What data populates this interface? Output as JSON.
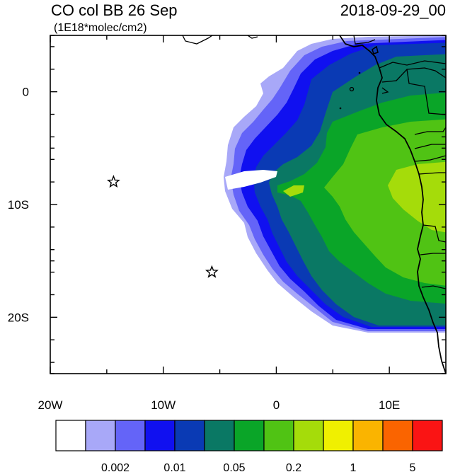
{
  "title": "CO col BB 26 Sep",
  "units": "(1E18*molec/cm2)",
  "datetime": "2018-09-29_00",
  "map": {
    "lon_range": [
      -20,
      15
    ],
    "lat_range": [
      -25,
      5
    ],
    "x_ticks": [
      {
        "value": -20,
        "label": "20W"
      },
      {
        "value": -10,
        "label": "10W"
      },
      {
        "value": 0,
        "label": "0"
      },
      {
        "value": 10,
        "label": "10E"
      }
    ],
    "y_ticks": [
      {
        "value": 0,
        "label": "0"
      },
      {
        "value": -10,
        "label": "10S"
      },
      {
        "value": -20,
        "label": "20S"
      }
    ],
    "markers": [
      {
        "name": "star-marker-1",
        "lon": -14.4,
        "lat": -8.0
      },
      {
        "name": "star-marker-2",
        "lon": -5.7,
        "lat": -16.0
      }
    ]
  },
  "colorbar": {
    "colors": [
      "#ffffff",
      "#a8a8f8",
      "#6464f8",
      "#1010f0",
      "#0a3ab4",
      "#0a7864",
      "#0aa528",
      "#50c314",
      "#a5dc0a",
      "#f0f000",
      "#fab400",
      "#fa6400",
      "#fa1414"
    ],
    "labels": [
      {
        "after_box": 1,
        "text": "0.002"
      },
      {
        "after_box": 3,
        "text": "0.01"
      },
      {
        "after_box": 5,
        "text": "0.05"
      },
      {
        "after_box": 7,
        "text": "0.2"
      },
      {
        "after_box": 9,
        "text": "1"
      },
      {
        "after_box": 11,
        "text": "5"
      }
    ]
  }
}
